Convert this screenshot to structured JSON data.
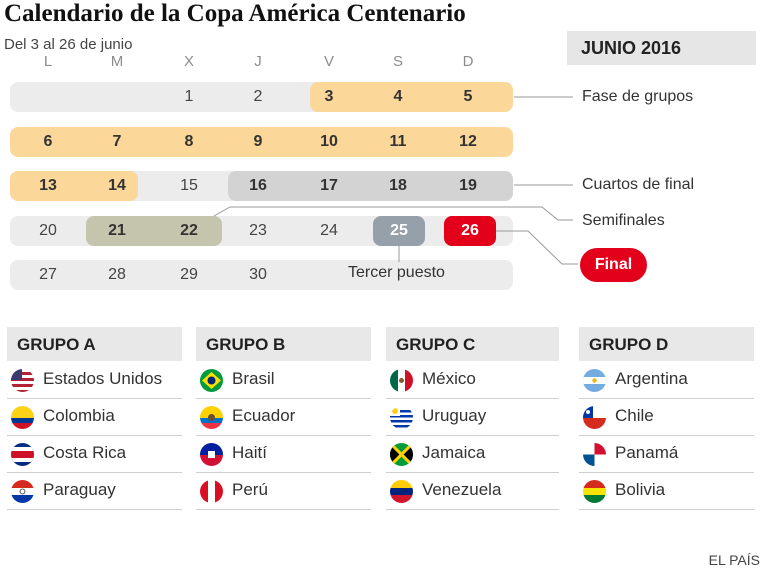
{
  "title": "Calendario de la Copa América Centenario",
  "subtitle": "Del 3 al 26 de junio",
  "month": "JUNIO 2016",
  "days": [
    "L",
    "M",
    "X",
    "J",
    "V",
    "S",
    "D"
  ],
  "weeks": [
    [
      "",
      "",
      "1",
      "2",
      "3",
      "4",
      "5"
    ],
    [
      "6",
      "7",
      "8",
      "9",
      "10",
      "11",
      "12"
    ],
    [
      "13",
      "14",
      "15",
      "16",
      "17",
      "18",
      "19"
    ],
    [
      "20",
      "21",
      "22",
      "23",
      "24",
      "25",
      "26"
    ],
    [
      "27",
      "28",
      "29",
      "30",
      "",
      "",
      ""
    ]
  ],
  "legend": {
    "groups": "Fase de grupos",
    "quarters": "Cuartos de final",
    "semis": "Semifinales",
    "final": "Final",
    "third": "Tercer puesto"
  },
  "colors": {
    "groups": "#fbd79a",
    "quarters": "#d3d3d3",
    "semis": "#c5c4ad",
    "third": "#95a0aa",
    "final": "#e2001a",
    "empty": "#ececec"
  },
  "groups": [
    {
      "name": "GRUPO A",
      "teams": [
        {
          "name": "Estados Unidos",
          "icon": "usa-flag-icon"
        },
        {
          "name": "Colombia",
          "icon": "colombia-flag-icon"
        },
        {
          "name": "Costa Rica",
          "icon": "costa-rica-flag-icon"
        },
        {
          "name": "Paraguay",
          "icon": "paraguay-flag-icon"
        }
      ]
    },
    {
      "name": "GRUPO B",
      "teams": [
        {
          "name": "Brasil",
          "icon": "brazil-flag-icon"
        },
        {
          "name": "Ecuador",
          "icon": "ecuador-flag-icon"
        },
        {
          "name": "Haití",
          "icon": "haiti-flag-icon"
        },
        {
          "name": "Perú",
          "icon": "peru-flag-icon"
        }
      ]
    },
    {
      "name": "GRUPO C",
      "teams": [
        {
          "name": "México",
          "icon": "mexico-flag-icon"
        },
        {
          "name": "Uruguay",
          "icon": "uruguay-flag-icon"
        },
        {
          "name": "Jamaica",
          "icon": "jamaica-flag-icon"
        },
        {
          "name": "Venezuela",
          "icon": "venezuela-flag-icon"
        }
      ]
    },
    {
      "name": "GRUPO D",
      "teams": [
        {
          "name": "Argentina",
          "icon": "argentina-flag-icon"
        },
        {
          "name": "Chile",
          "icon": "chile-flag-icon"
        },
        {
          "name": "Panamá",
          "icon": "panama-flag-icon"
        },
        {
          "name": "Bolivia",
          "icon": "bolivia-flag-icon"
        }
      ]
    }
  ],
  "source": "EL PAÍS"
}
